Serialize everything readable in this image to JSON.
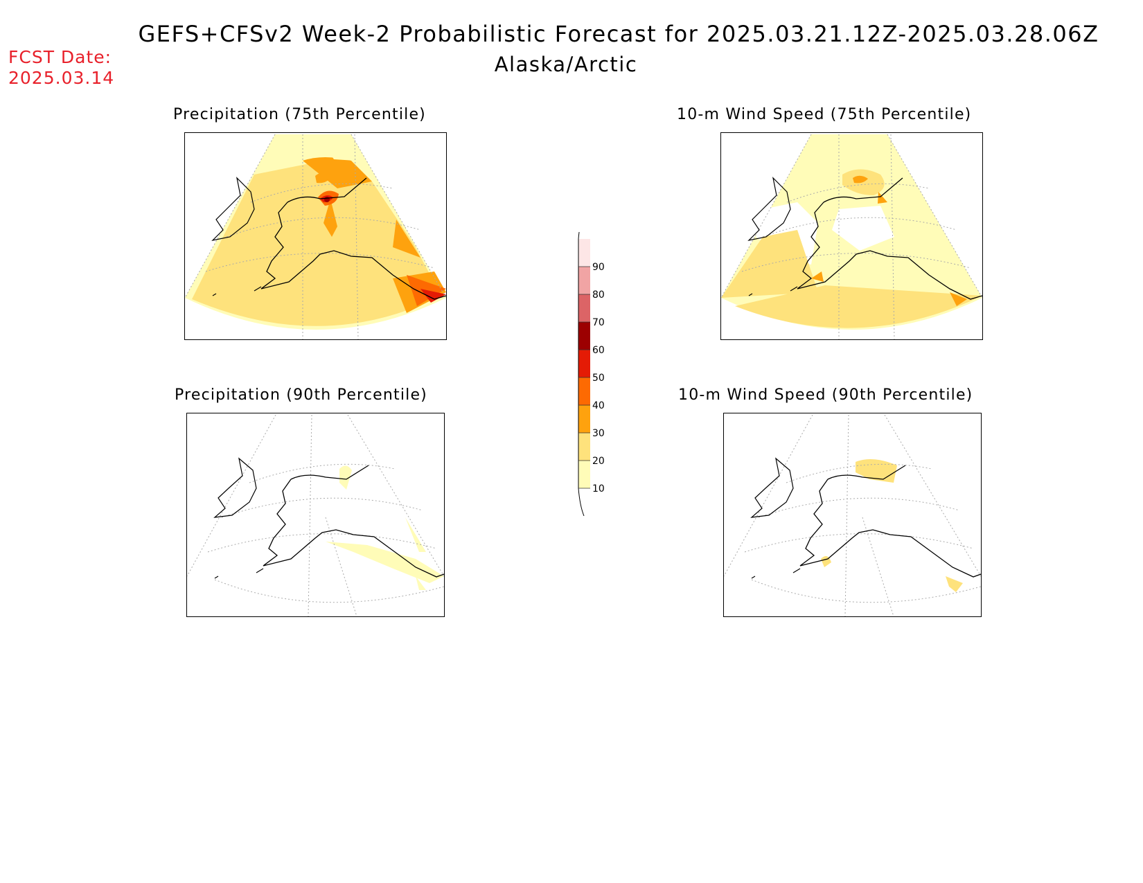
{
  "header": {
    "title": "GEFS+CFSv2 Week-2 Probabilistic Forecast for 2025.03.21.12Z-2025.03.28.06Z",
    "subtitle": "Alaska/Arctic",
    "fcst_label": "FCST Date:",
    "fcst_value": "2025.03.14"
  },
  "panels": [
    {
      "id": "precip-75",
      "title": "Precipitation (75th Percentile)"
    },
    {
      "id": "wind-75",
      "title": "10-m Wind Speed (75th Percentile)"
    },
    {
      "id": "precip-90",
      "title": "Precipitation (90th Percentile)"
    },
    {
      "id": "wind-90",
      "title": "10-m Wind Speed (90th Percentile)"
    }
  ],
  "colorbar": {
    "ticks": [
      "10",
      "20",
      "30",
      "40",
      "50",
      "60",
      "70",
      "80",
      "90"
    ],
    "colors": [
      "#fffcb8",
      "#fee27c",
      "#fea20e",
      "#fd6a02",
      "#e41b05",
      "#9c0001",
      "#dc6466",
      "#f1a4a4",
      "#fde6e6"
    ]
  }
}
